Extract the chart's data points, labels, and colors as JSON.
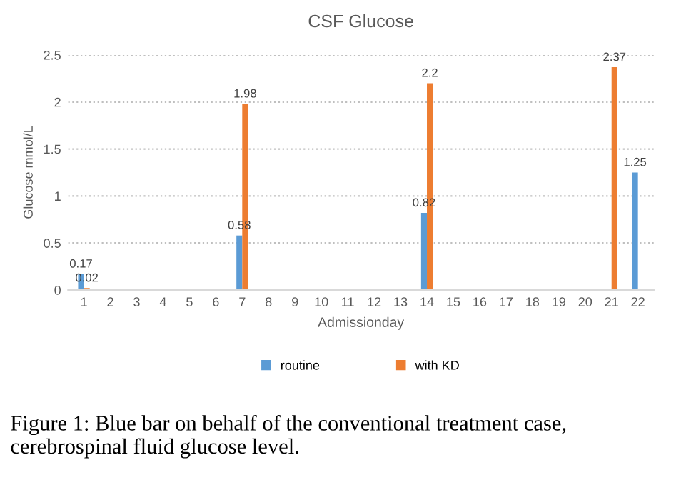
{
  "chart_data": {
    "type": "bar",
    "title": "CSF Glucose",
    "xlabel": "Admissionday",
    "ylabel": "Glucose mmol/L",
    "categories": [
      "1",
      "2",
      "3",
      "4",
      "5",
      "6",
      "7",
      "8",
      "9",
      "10",
      "11",
      "12",
      "13",
      "14",
      "15",
      "16",
      "17",
      "18",
      "19",
      "20",
      "21",
      "22"
    ],
    "series": [
      {
        "name": "routine",
        "color": "#5b9bd5",
        "values": [
          0.17,
          null,
          null,
          null,
          null,
          null,
          0.58,
          null,
          null,
          null,
          null,
          null,
          null,
          0.82,
          null,
          null,
          null,
          null,
          null,
          null,
          null,
          1.25
        ],
        "value_labels": [
          "0.17",
          null,
          null,
          null,
          null,
          null,
          "0.58",
          null,
          null,
          null,
          null,
          null,
          null,
          "0.82",
          null,
          null,
          null,
          null,
          null,
          null,
          null,
          "1.25"
        ]
      },
      {
        "name": "with KD",
        "color": "#ed7d31",
        "values": [
          0.02,
          null,
          null,
          null,
          null,
          null,
          1.98,
          null,
          null,
          null,
          null,
          null,
          null,
          2.2,
          null,
          null,
          null,
          null,
          null,
          null,
          2.37,
          null
        ],
        "value_labels": [
          "0.02",
          null,
          null,
          null,
          null,
          null,
          "1.98",
          null,
          null,
          null,
          null,
          null,
          null,
          "2.2",
          null,
          null,
          null,
          null,
          null,
          null,
          "2.37",
          null
        ]
      }
    ],
    "ylim": [
      0,
      2.5
    ],
    "yticks": [
      0,
      0.5,
      1,
      1.5,
      2,
      2.5
    ],
    "grid": "y",
    "legend": "bottom",
    "annotations": [
      "Figure 1: Blue bar on behalf of the conventional treatment case, cerebrospinal fluid glucose level."
    ]
  }
}
